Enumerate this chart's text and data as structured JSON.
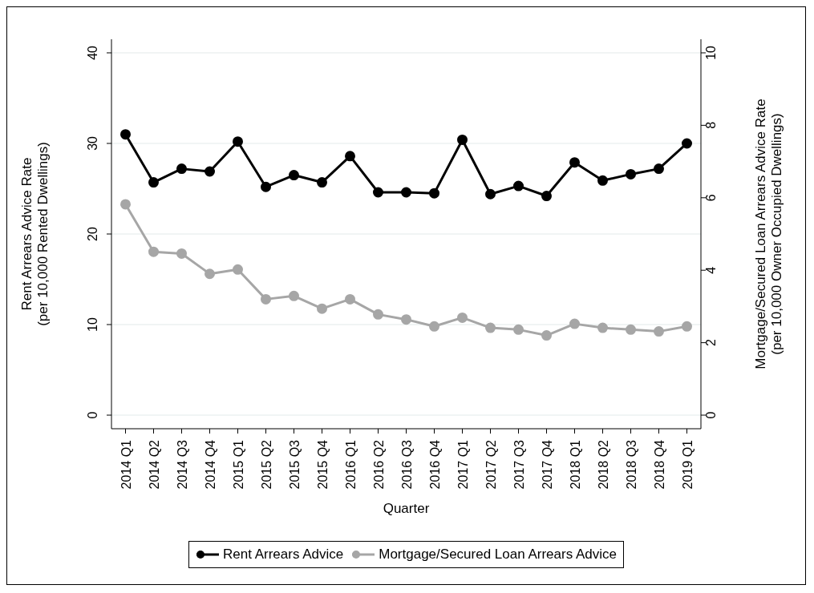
{
  "chart_data": {
    "type": "line",
    "xlabel": "Quarter",
    "ylabel": "Rent Arrears Advice Rate\n(per 10,000 Rented Dwellings)",
    "y2label": "Mortgage/Secured Loan Arrears Advice Rate\n(per 10,000 Owner Occupied Dwellings)",
    "categories": [
      "2014 Q1",
      "2014 Q2",
      "2014 Q3",
      "2014 Q4",
      "2015 Q1",
      "2015 Q2",
      "2015 Q3",
      "2015 Q4",
      "2016 Q1",
      "2016 Q2",
      "2016 Q3",
      "2016 Q4",
      "2017 Q1",
      "2017 Q2",
      "2017 Q3",
      "2017 Q4",
      "2018 Q1",
      "2018 Q2",
      "2018 Q3",
      "2018 Q4",
      "2019 Q1"
    ],
    "series": [
      {
        "name": "Rent Arrears Advice",
        "color": "#000000",
        "values": [
          31.0,
          25.7,
          27.2,
          26.9,
          30.2,
          25.2,
          26.5,
          25.7,
          28.6,
          24.6,
          24.6,
          24.5,
          30.4,
          24.4,
          25.3,
          24.2,
          27.9,
          25.9,
          26.6,
          27.2,
          30.0
        ]
      },
      {
        "name": "Mortgage/Secured Loan Arrears Advice",
        "color": "#a6a6a6",
        "axis": "y2",
        "values": [
          5.82,
          4.51,
          4.46,
          3.9,
          4.02,
          3.2,
          3.29,
          2.94,
          3.2,
          2.78,
          2.64,
          2.45,
          2.69,
          2.41,
          2.36,
          2.2,
          2.52,
          2.41,
          2.36,
          2.31,
          2.45
        ]
      }
    ],
    "ylim": [
      -1.5,
      41.5
    ],
    "yticks": [
      0,
      10,
      20,
      30,
      40
    ],
    "y2lim": [
      -0.375,
      10.375
    ],
    "y2ticks": [
      0,
      2,
      4,
      6,
      8,
      10
    ],
    "grid": "y",
    "legend": "bottom",
    "marker": "circle",
    "line_style": "solid"
  }
}
